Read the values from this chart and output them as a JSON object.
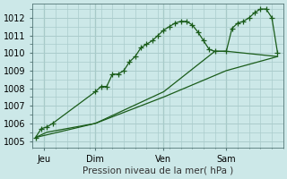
{
  "background_color": "#cce8e8",
  "plot_bg_color": "#cce8e8",
  "grid_color": "#aacccc",
  "line_color": "#1a5c1a",
  "line_color2": "#2d7a2d",
  "title": "Pression niveau de la mer( hPa )",
  "xlim": [
    0,
    88
  ],
  "ylim": [
    1004.6,
    1012.8
  ],
  "yticks": [
    1005,
    1006,
    1007,
    1008,
    1009,
    1010,
    1011,
    1012
  ],
  "xtick_labels": [
    "Jeu",
    "Dim",
    "Ven",
    "Sam"
  ],
  "xtick_positions": [
    4,
    22,
    46,
    68
  ],
  "xminor_interval": 4,
  "series1_x": [
    1,
    3,
    5,
    7,
    22,
    24,
    26,
    28,
    30,
    32,
    34,
    36,
    38,
    40,
    42,
    44,
    46,
    48,
    50,
    52,
    54,
    56,
    58,
    60,
    62,
    64,
    68,
    70,
    72,
    74,
    76,
    78,
    80,
    82,
    84,
    86
  ],
  "series1_y": [
    1005.2,
    1005.7,
    1005.8,
    1006.0,
    1007.8,
    1008.1,
    1008.1,
    1008.8,
    1008.8,
    1009.0,
    1009.5,
    1009.8,
    1010.3,
    1010.5,
    1010.7,
    1011.0,
    1011.3,
    1011.5,
    1011.7,
    1011.8,
    1011.8,
    1011.6,
    1011.2,
    1010.7,
    1010.2,
    1010.1,
    1010.1,
    1011.4,
    1011.7,
    1011.8,
    1012.0,
    1012.3,
    1012.5,
    1012.5,
    1012.0,
    1010.0
  ],
  "series2_x": [
    1,
    22,
    46,
    68,
    86
  ],
  "series2_y": [
    1005.2,
    1006.0,
    1007.5,
    1009.0,
    1009.8
  ],
  "series3_x": [
    1,
    5,
    22,
    46,
    64,
    68,
    86
  ],
  "series3_y": [
    1005.2,
    1005.5,
    1006.0,
    1007.8,
    1010.1,
    1010.1,
    1009.8
  ]
}
